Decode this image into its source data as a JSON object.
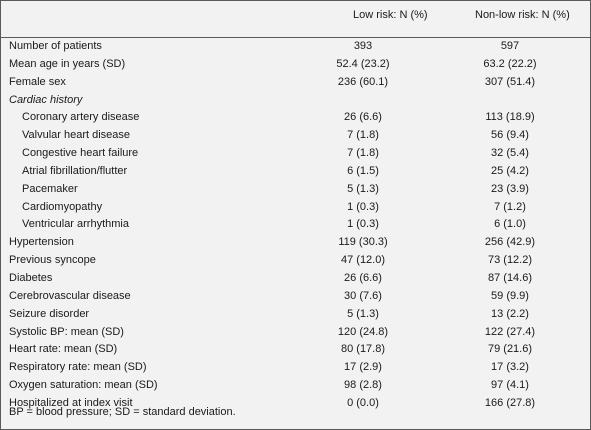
{
  "header": {
    "col1": "Low risk: N (%)",
    "col2": "Non-low risk: N (%)"
  },
  "rows": [
    {
      "label": "Number of patients",
      "low": "393",
      "non": "597",
      "indent": false,
      "section": false
    },
    {
      "label": "Mean age in years (SD)",
      "low": "52.4 (23.2)",
      "non": "63.2 (22.2)",
      "indent": false,
      "section": false
    },
    {
      "label": "Female sex",
      "low": "236 (60.1)",
      "non": "307 (51.4)",
      "indent": false,
      "section": false
    },
    {
      "label": "Cardiac history",
      "low": "",
      "non": "",
      "indent": false,
      "section": true
    },
    {
      "label": "Coronary artery disease",
      "low": "26 (6.6)",
      "non": "113 (18.9)",
      "indent": true,
      "section": false
    },
    {
      "label": "Valvular heart disease",
      "low": "7 (1.8)",
      "non": "56 (9.4)",
      "indent": true,
      "section": false
    },
    {
      "label": "Congestive heart failure",
      "low": "7 (1.8)",
      "non": "32 (5.4)",
      "indent": true,
      "section": false
    },
    {
      "label": "Atrial fibrillation/flutter",
      "low": "6 (1.5)",
      "non": "25 (4.2)",
      "indent": true,
      "section": false
    },
    {
      "label": "Pacemaker",
      "low": "5 (1.3)",
      "non": "23 (3.9)",
      "indent": true,
      "section": false
    },
    {
      "label": "Cardiomyopathy",
      "low": "1 (0.3)",
      "non": "7 (1.2)",
      "indent": true,
      "section": false
    },
    {
      "label": "Ventricular arrhythmia",
      "low": "1 (0.3)",
      "non": "6 (1.0)",
      "indent": true,
      "section": false
    },
    {
      "label": "Hypertension",
      "low": "119 (30.3)",
      "non": "256 (42.9)",
      "indent": false,
      "section": false
    },
    {
      "label": "Previous syncope",
      "low": "47 (12.0)",
      "non": "73 (12.2)",
      "indent": false,
      "section": false
    },
    {
      "label": "Diabetes",
      "low": "26 (6.6)",
      "non": "87 (14.6)",
      "indent": false,
      "section": false
    },
    {
      "label": "Cerebrovascular disease",
      "low": "30 (7.6)",
      "non": "59 (9.9)",
      "indent": false,
      "section": false
    },
    {
      "label": "Seizure disorder",
      "low": "5 (1.3)",
      "non": "13 (2.2)",
      "indent": false,
      "section": false
    },
    {
      "label": "Systolic BP: mean (SD)",
      "low": "120 (24.8)",
      "non": "122 (27.4)",
      "indent": false,
      "section": false
    },
    {
      "label": "Heart rate: mean (SD)",
      "low": "80 (17.8)",
      "non": "79 (21.6)",
      "indent": false,
      "section": false
    },
    {
      "label": "Respiratory rate: mean (SD)",
      "low": "17 (2.9)",
      "non": "17 (3.2)",
      "indent": false,
      "section": false
    },
    {
      "label": "Oxygen saturation: mean (SD)",
      "low": "98 (2.8)",
      "non": "97 (4.1)",
      "indent": false,
      "section": false
    },
    {
      "label": "Hospitalized at index visit",
      "low": "0 (0.0)",
      "non": "166 (27.8)",
      "indent": false,
      "section": false
    }
  ],
  "footer": "BP = blood pressure; SD = standard deviation."
}
